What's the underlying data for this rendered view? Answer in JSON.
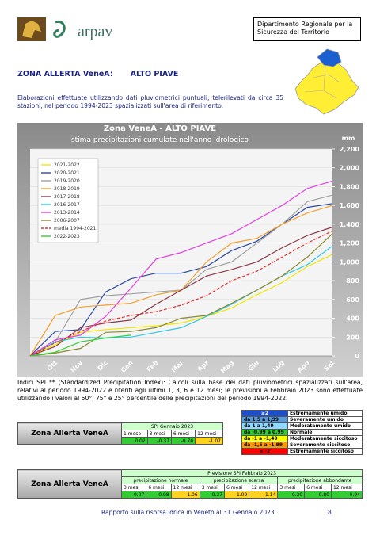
{
  "header": {
    "logo": "arpav",
    "department": "Dipartimento Regionale per la Sicurezza del Territorio"
  },
  "zone": {
    "label": "ZONA ALLERTA VeneA:",
    "name": "ALTO PIAVE"
  },
  "intro": "Elaborazioni effettuate utilizzando dati pluviometrici puntuali, telerilevati da circa 35 stazioni, nel periodo 1994-2023 spazializzati sull'area di riferimento.",
  "chart_data": {
    "type": "line",
    "title": "Zona VeneA -  ALTO PIAVE",
    "subtitle": "stima precipitazioni cumulate nell'anno idrologico",
    "y_unit": "mm",
    "categories": [
      null,
      "Ott",
      "Nov",
      "Dic",
      "Gen",
      "Feb",
      "Mar",
      "Apr",
      "Mag",
      "Giu",
      "Lug",
      "Ago",
      "Set"
    ],
    "series": [
      {
        "name": "2021-2022",
        "color": "#f2e600",
        "values": [
          0,
          120,
          250,
          280,
          300,
          320,
          350,
          420,
          510,
          650,
          780,
          950,
          1080
        ]
      },
      {
        "name": "2020-2021",
        "color": "#2b4aa0",
        "values": [
          0,
          260,
          280,
          680,
          820,
          880,
          880,
          950,
          1120,
          1220,
          1400,
          1580,
          1620
        ]
      },
      {
        "name": "2019-2020",
        "color": "#a0a0a0",
        "values": [
          0,
          150,
          600,
          640,
          660,
          680,
          700,
          920,
          1000,
          1200,
          1400,
          1640,
          1710
        ]
      },
      {
        "name": "2018-2019",
        "color": "#f0a030",
        "values": [
          0,
          430,
          520,
          540,
          560,
          650,
          700,
          1000,
          1200,
          1250,
          1400,
          1520,
          1600
        ]
      },
      {
        "name": "2017-2018",
        "color": "#8b3a4a",
        "values": [
          0,
          100,
          300,
          350,
          380,
          550,
          700,
          850,
          920,
          1000,
          1150,
          1280,
          1370
        ]
      },
      {
        "name": "2016-2017",
        "color": "#30c8e8",
        "values": [
          0,
          150,
          200,
          190,
          200,
          250,
          300,
          420,
          550,
          700,
          850,
          970,
          1170
        ]
      },
      {
        "name": "2013-2014",
        "color": "#e040e0",
        "values": [
          0,
          170,
          220,
          420,
          720,
          1030,
          1100,
          1200,
          1300,
          1450,
          1600,
          1780,
          1860
        ]
      },
      {
        "name": "2006-2007",
        "color": "#8a8a30",
        "values": [
          0,
          30,
          80,
          250,
          260,
          300,
          400,
          430,
          560,
          700,
          850,
          1050,
          1300
        ]
      },
      {
        "name": "media 1994-2021",
        "color": "#e03030",
        "dashed": true,
        "values": [
          0,
          140,
          260,
          370,
          430,
          470,
          540,
          640,
          800,
          900,
          1050,
          1200,
          1330
        ]
      },
      {
        "name": "2022-2023",
        "color": "#30d030",
        "values": [
          0,
          40,
          150,
          190,
          220,
          null,
          null,
          null,
          null,
          null,
          null,
          null,
          null
        ]
      }
    ],
    "ylim": [
      0,
      2200
    ],
    "yticks": [
      0,
      200,
      400,
      600,
      800,
      {
        "value": 1000,
        "label": "1,000"
      },
      {
        "value": 1200,
        "label": "1,200"
      },
      {
        "value": 1400,
        "label": "1,400"
      },
      {
        "value": 1600,
        "label": "1,600"
      },
      {
        "value": 1800,
        "label": "1,800"
      },
      {
        "value": 2000,
        "label": "2,000"
      },
      {
        "value": 2200,
        "label": "2,200"
      }
    ],
    "grid": true,
    "legend": "upper left"
  },
  "spi_note": "Indici SPI ** (Standardized Precipitation Index): Calcoli sulla base dei dati pluviometrici spazializzati sull'area, relativi al periodo 1994-2022 e riferiti agli ultimi 1, 3, 6 e 12 mesi; le previsioni a Febbraio 2023 sono effettuate utilizzando i valori al 50°, 75° e 25° percentile delle precipitazioni del periodo 1994-2022.",
  "spi_legend": [
    {
      "range": "≥2",
      "label": "Estremamente umido"
    },
    {
      "range": "da  1,5 a 1,99",
      "label": "Severamente umido"
    },
    {
      "range": "da   1  a 1,49",
      "label": "Moderatamente umido"
    },
    {
      "range": "da -0,99 a 0,99",
      "label": "Normale"
    },
    {
      "range": "da  -1  a -1,49",
      "label": "Moderatamente siccitoso"
    },
    {
      "range": "da -1,5 a -1,99",
      "label": "Severamente siccitoso"
    },
    {
      "range": "≤ -2",
      "label": "Estremamente siccitoso"
    }
  ],
  "spi_table": {
    "zone": "Zona Allerta VeneA",
    "title": "SPI Gennaio 2023",
    "columns": [
      "1 mese",
      "3 mesi",
      "6 mesi",
      "12 mesi"
    ],
    "values": [
      "0.02",
      "-0.37",
      "-0.76",
      "-1.07"
    ]
  },
  "forecast_table": {
    "zone": "Zona Allerta VeneA",
    "title": "Previsione SPI Febbraio 2023",
    "groups": [
      {
        "name": "precipitazione normale",
        "columns": [
          "3 mesi",
          "6 mesi",
          "12 mesi"
        ],
        "values": [
          "-0.07",
          "-0.98",
          "-1.06"
        ]
      },
      {
        "name": "precipitazione scarsa",
        "columns": [
          "3 mesi",
          "6 mesi",
          "12 mesi"
        ],
        "values": [
          "-0.27",
          "-1.09",
          "-1.14"
        ]
      },
      {
        "name": "precipitazione abbondante",
        "columns": [
          "3 mesi",
          "6 mesi",
          "12 mesi"
        ],
        "values": [
          "0.20",
          "-0.80",
          "-0.94"
        ]
      }
    ]
  },
  "footer": {
    "text": "Rapporto sulla risorsa idrica in Veneto al 31 Gennaio 2023",
    "page": "8"
  }
}
